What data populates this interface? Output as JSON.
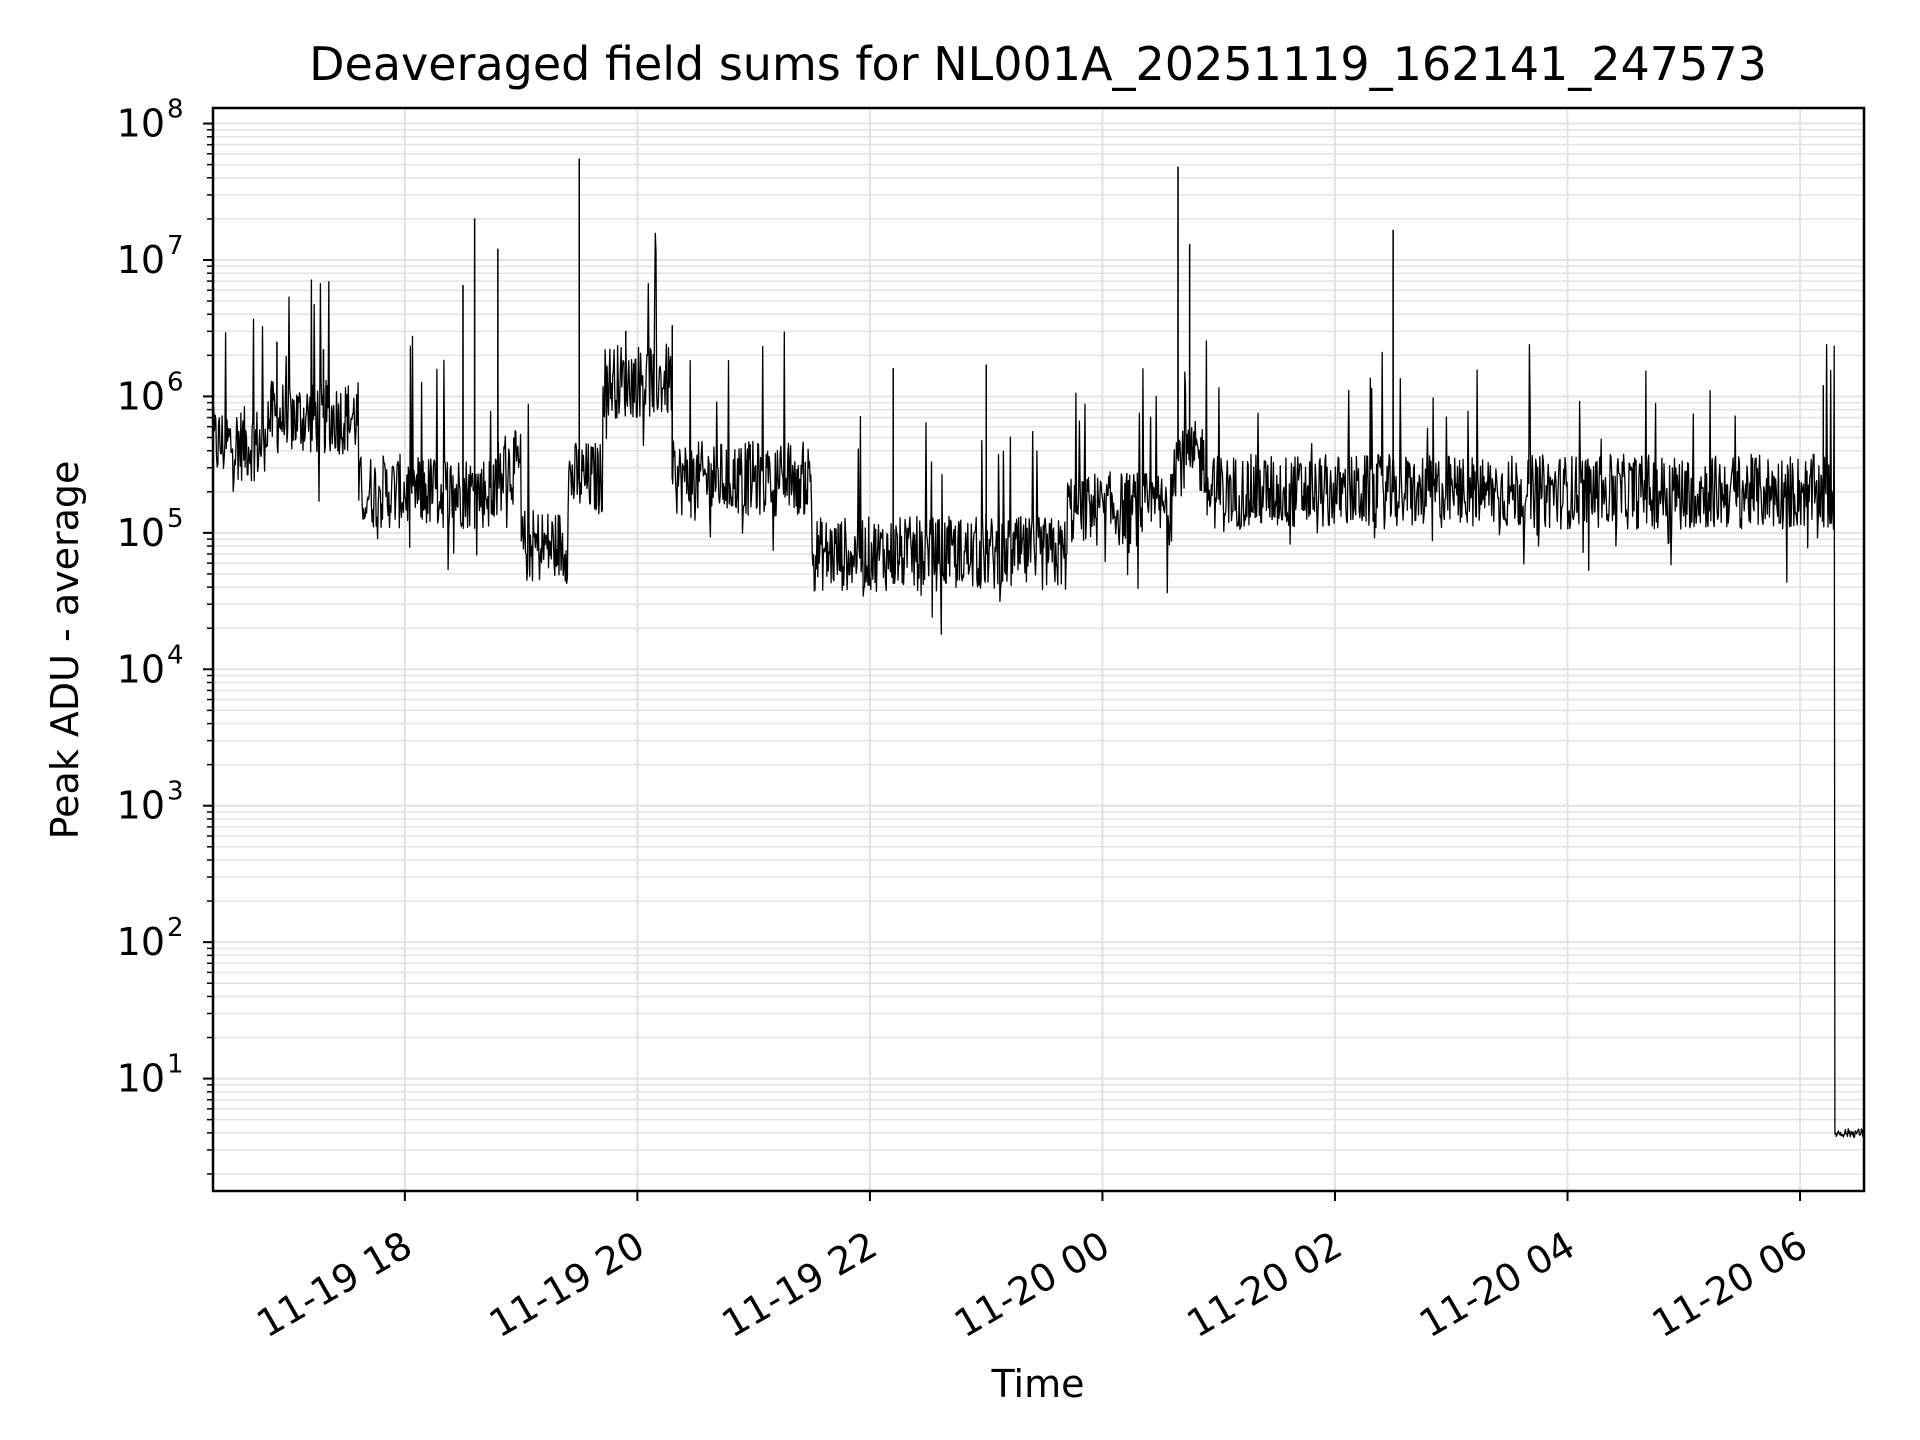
{
  "chart_data": {
    "type": "line",
    "title": "Deaveraged field sums for NL001A_20251119_162141_247573",
    "xlabel": "Time",
    "ylabel": "Peak ADU - average",
    "yscale": "log",
    "ylim": [
      1.5,
      130000000
    ],
    "xlim_hours_since_1119_1600": [
      0.35,
      14.55
    ],
    "grid": true,
    "line_color": "#000000",
    "grid_color": "#e3e3e3",
    "x_ticks": [
      {
        "hour": 2,
        "label": "11-19 18"
      },
      {
        "hour": 4,
        "label": "11-19 20"
      },
      {
        "hour": 6,
        "label": "11-19 22"
      },
      {
        "hour": 8,
        "label": "11-20 00"
      },
      {
        "hour": 10,
        "label": "11-20 02"
      },
      {
        "hour": 12,
        "label": "11-20 04"
      },
      {
        "hour": 14,
        "label": "11-20 06"
      }
    ],
    "y_ticks": [
      {
        "exp": 1,
        "base": "10",
        "sup": "1"
      },
      {
        "exp": 2,
        "base": "10",
        "sup": "2"
      },
      {
        "exp": 3,
        "base": "10",
        "sup": "3"
      },
      {
        "exp": 4,
        "base": "10",
        "sup": "4"
      },
      {
        "exp": 5,
        "base": "10",
        "sup": "5"
      },
      {
        "exp": 6,
        "base": "10",
        "sup": "6"
      },
      {
        "exp": 7,
        "base": "10",
        "sup": "7"
      },
      {
        "exp": 8,
        "base": "10",
        "sup": "8"
      }
    ],
    "series": [
      {
        "name": "field sums",
        "segments_hours": [
          {
            "start": 0.35,
            "end": 0.8,
            "level": 450000
          },
          {
            "start": 0.8,
            "end": 1.6,
            "level": 700000
          },
          {
            "start": 1.6,
            "end": 2.8,
            "level": 200000
          },
          {
            "start": 2.8,
            "end": 3.0,
            "level": 300000
          },
          {
            "start": 3.0,
            "end": 3.4,
            "level": 80000
          },
          {
            "start": 3.4,
            "end": 3.7,
            "level": 250000
          },
          {
            "start": 3.7,
            "end": 4.3,
            "level": 1300000
          },
          {
            "start": 4.3,
            "end": 5.5,
            "level": 250000
          },
          {
            "start": 5.5,
            "end": 7.7,
            "level": 70000
          },
          {
            "start": 7.7,
            "end": 8.6,
            "level": 150000
          },
          {
            "start": 8.6,
            "end": 8.9,
            "level": 350000
          },
          {
            "start": 8.9,
            "end": 14.3,
            "level": 200000
          },
          {
            "start": 14.3,
            "end": 14.55,
            "level": 4
          }
        ],
        "spikes": [
          {
            "hour": 0.9,
            "value": 2500000
          },
          {
            "hour": 1.3,
            "value": 2200000
          },
          {
            "hour": 2.5,
            "value": 6500000
          },
          {
            "hour": 2.6,
            "value": 20000000
          },
          {
            "hour": 2.8,
            "value": 12000000
          },
          {
            "hour": 3.5,
            "value": 55000000
          },
          {
            "hour": 3.9,
            "value": 3000000
          },
          {
            "hour": 4.3,
            "value": 3300000
          },
          {
            "hour": 6.2,
            "value": 1600000
          },
          {
            "hour": 7.0,
            "value": 1700000
          },
          {
            "hour": 8.65,
            "value": 48000000
          },
          {
            "hour": 8.75,
            "value": 13000000
          },
          {
            "hour": 10.5,
            "value": 16500000
          },
          {
            "hour": 14.2,
            "value": 1200000
          }
        ]
      }
    ]
  }
}
